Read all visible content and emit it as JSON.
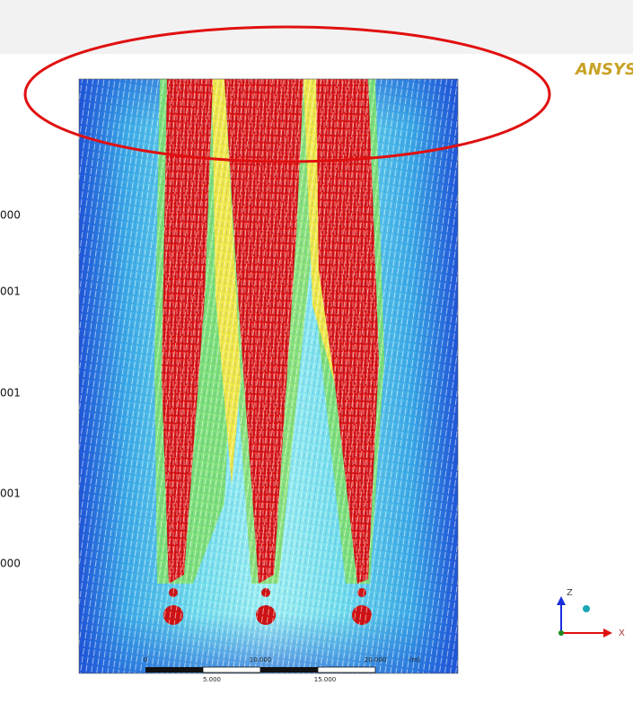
{
  "logo": "ANSYS",
  "legend": {
    "labels": [
      "000",
      "001",
      "001",
      "001",
      "000"
    ]
  },
  "scale_bar": {
    "top_labels": [
      "0",
      "10.000",
      "20.000",
      "(m)"
    ],
    "bottom_labels": [
      "5.000",
      "15.000"
    ]
  },
  "axes": {
    "vertical": "Z",
    "horizontal": "X"
  }
}
